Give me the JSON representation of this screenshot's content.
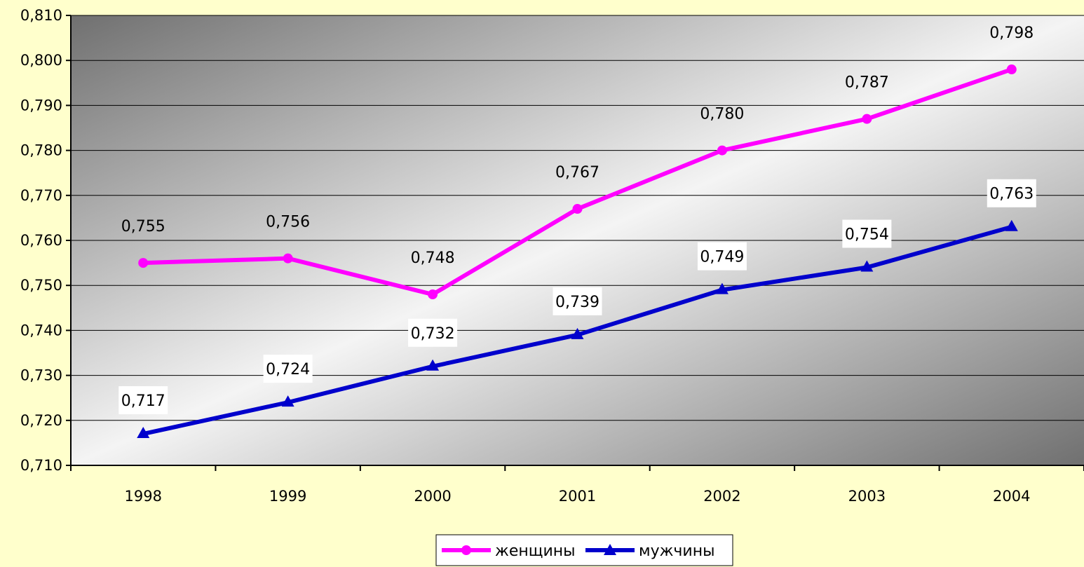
{
  "chart_data": {
    "type": "line",
    "categories": [
      "1998",
      "1999",
      "2000",
      "2001",
      "2002",
      "2003",
      "2004"
    ],
    "series": [
      {
        "name": "женщины",
        "values": [
          0.755,
          0.756,
          0.748,
          0.767,
          0.78,
          0.787,
          0.798
        ],
        "labels": [
          "0,755",
          "0,756",
          "0,748",
          "0,767",
          "0,780",
          "0,787",
          "0,798"
        ],
        "color": "#FF00FF",
        "marker": "circle"
      },
      {
        "name": "мужчины",
        "values": [
          0.717,
          0.724,
          0.732,
          0.739,
          0.749,
          0.754,
          0.763
        ],
        "labels": [
          "0,717",
          "0,724",
          "0,732",
          "0,739",
          "0,749",
          "0,754",
          "0,763"
        ],
        "color": "#0000CC",
        "marker": "triangle"
      }
    ],
    "y_ticks": [
      0.71,
      0.72,
      0.73,
      0.74,
      0.75,
      0.76,
      0.77,
      0.78,
      0.79,
      0.8,
      0.81
    ],
    "y_tick_labels": [
      "0,710",
      "0,720",
      "0,730",
      "0,740",
      "0,750",
      "0,760",
      "0,770",
      "0,780",
      "0,790",
      "0,800",
      "0,810"
    ],
    "ylim": [
      0.71,
      0.81
    ],
    "grid": true,
    "legend_position": "bottom",
    "plot_background": "gradient-gray"
  }
}
